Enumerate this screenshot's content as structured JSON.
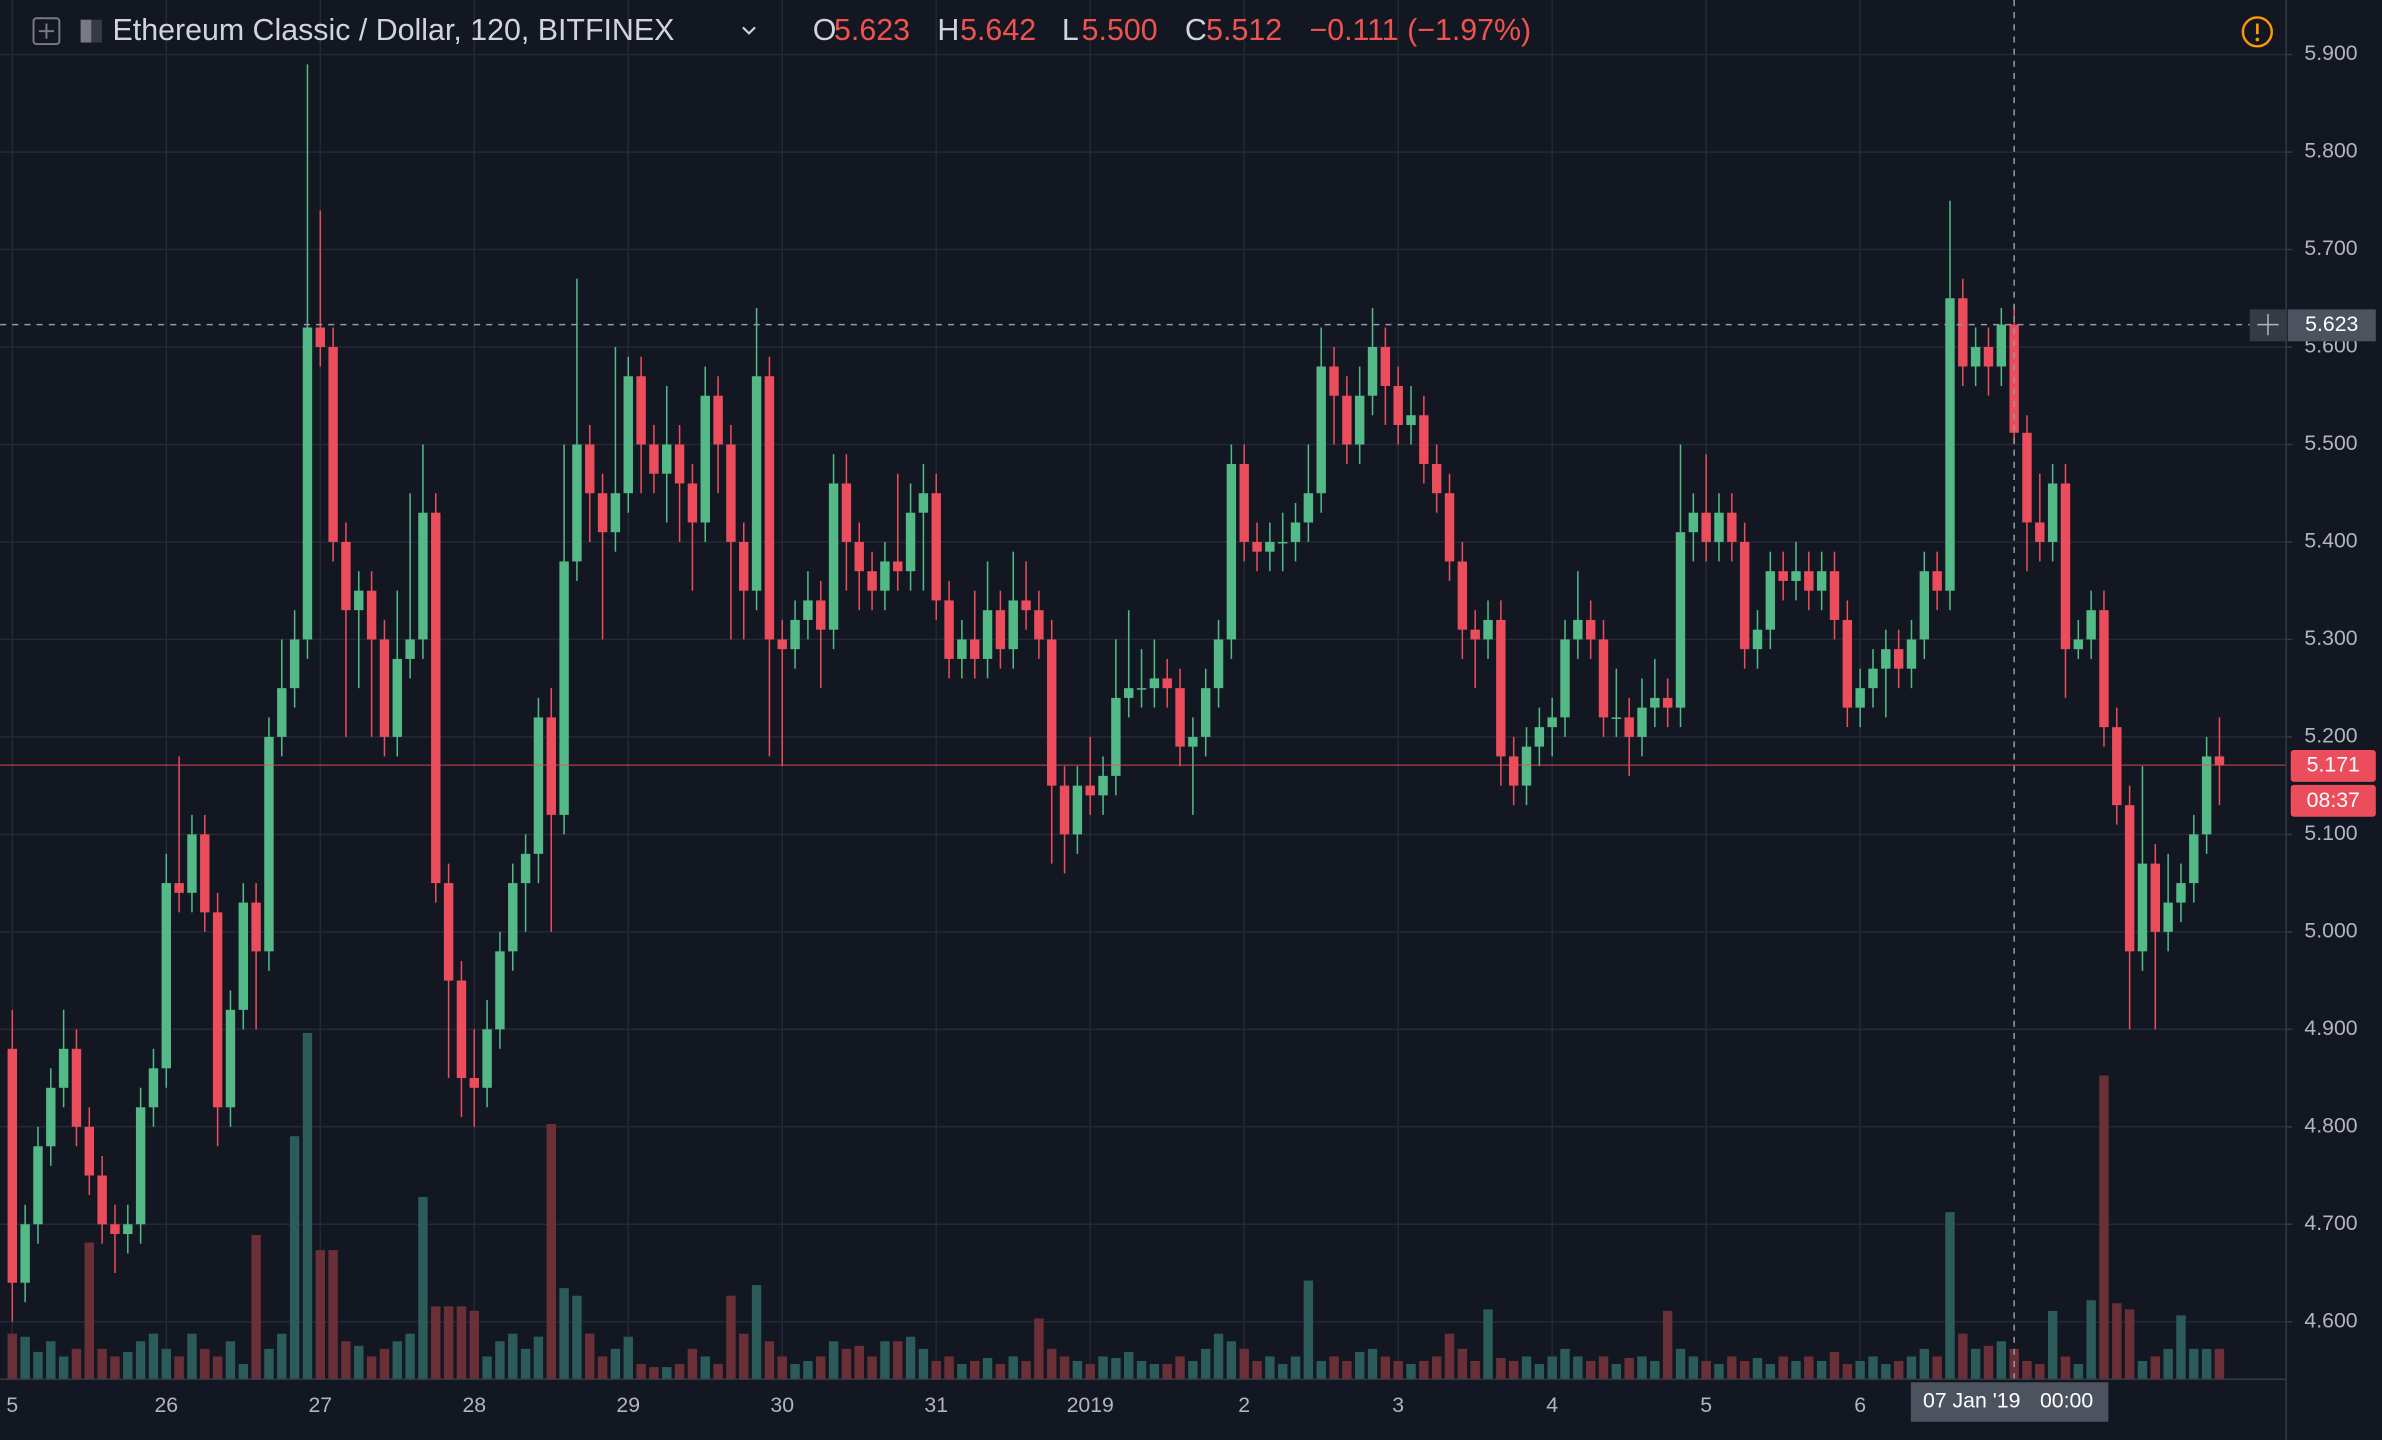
{
  "header": {
    "title": "Ethereum Classic / Dollar, 120, BITFINEX",
    "ohlc_letters": [
      "O",
      "H",
      "L",
      "C"
    ],
    "ohlc_values": [
      5.623,
      5.642,
      5.5,
      5.512
    ],
    "ohlc_value_labels": [
      "5.623",
      "5.642",
      "5.500",
      "5.512"
    ],
    "change": "−0.111 (−1.97%)"
  },
  "chart_data": {
    "type": "candlestick",
    "open": [
      4.88,
      4.64,
      4.7,
      4.78,
      4.84,
      4.88,
      4.8,
      4.75,
      4.7,
      4.69,
      4.7,
      4.82,
      4.86,
      5.05,
      5.04,
      5.1,
      5.02,
      4.82,
      4.92,
      5.03,
      4.98,
      5.2,
      5.25,
      5.3,
      5.62,
      5.6,
      5.4,
      5.33,
      5.35,
      5.3,
      5.2,
      5.28,
      5.3,
      5.43,
      5.05,
      4.95,
      4.85,
      4.84,
      4.9,
      4.98,
      5.05,
      5.08,
      5.22,
      5.12,
      5.38,
      5.5,
      5.45,
      5.41,
      5.45,
      5.57,
      5.5,
      5.47,
      5.5,
      5.46,
      5.42,
      5.55,
      5.5,
      5.4,
      5.35,
      5.57,
      5.3,
      5.29,
      5.32,
      5.34,
      5.31,
      5.46,
      5.4,
      5.37,
      5.35,
      5.38,
      5.37,
      5.43,
      5.45,
      5.34,
      5.28,
      5.3,
      5.28,
      5.33,
      5.29,
      5.34,
      5.33,
      5.3,
      5.15,
      5.1,
      5.15,
      5.14,
      5.16,
      5.24,
      5.25,
      5.25,
      5.26,
      5.25,
      5.19,
      5.2,
      5.25,
      5.3,
      5.48,
      5.4,
      5.39,
      5.4,
      5.4,
      5.42,
      5.45,
      5.58,
      5.55,
      5.5,
      5.55,
      5.6,
      5.56,
      5.52,
      5.53,
      5.48,
      5.45,
      5.38,
      5.31,
      5.3,
      5.32,
      5.18,
      5.15,
      5.19,
      5.21,
      5.22,
      5.3,
      5.32,
      5.3,
      5.22,
      5.22,
      5.2,
      5.23,
      5.24,
      5.23,
      5.41,
      5.43,
      5.4,
      5.43,
      5.4,
      5.29,
      5.31,
      5.37,
      5.36,
      5.37,
      5.35,
      5.37,
      5.32,
      5.23,
      5.25,
      5.27,
      5.29,
      5.27,
      5.3,
      5.37,
      5.35,
      5.65,
      5.58,
      5.6,
      5.58,
      5.623,
      5.512,
      5.42,
      5.4,
      5.46,
      5.29,
      5.3,
      5.33,
      5.21,
      5.13,
      4.98,
      5.07,
      5.0,
      5.03,
      5.05,
      5.1,
      5.18
    ],
    "high": [
      4.92,
      4.72,
      4.8,
      4.86,
      4.92,
      4.9,
      4.82,
      4.77,
      4.72,
      4.72,
      4.84,
      4.88,
      5.08,
      5.18,
      5.12,
      5.12,
      5.04,
      4.94,
      5.05,
      5.05,
      5.22,
      5.3,
      5.33,
      5.89,
      5.74,
      5.62,
      5.42,
      5.37,
      5.37,
      5.32,
      5.35,
      5.45,
      5.5,
      5.45,
      5.07,
      4.97,
      4.9,
      4.93,
      5.0,
      5.07,
      5.1,
      5.24,
      5.25,
      5.5,
      5.67,
      5.52,
      5.47,
      5.6,
      5.59,
      5.59,
      5.52,
      5.56,
      5.52,
      5.48,
      5.58,
      5.57,
      5.52,
      5.42,
      5.64,
      5.59,
      5.32,
      5.34,
      5.37,
      5.36,
      5.49,
      5.49,
      5.42,
      5.39,
      5.4,
      5.47,
      5.46,
      5.48,
      5.47,
      5.36,
      5.32,
      5.35,
      5.38,
      5.35,
      5.39,
      5.38,
      5.35,
      5.32,
      5.17,
      5.17,
      5.2,
      5.18,
      5.3,
      5.33,
      5.29,
      5.3,
      5.28,
      5.27,
      5.22,
      5.27,
      5.32,
      5.5,
      5.5,
      5.42,
      5.42,
      5.43,
      5.44,
      5.5,
      5.62,
      5.6,
      5.57,
      5.58,
      5.64,
      5.62,
      5.58,
      5.56,
      5.55,
      5.5,
      5.47,
      5.4,
      5.33,
      5.34,
      5.34,
      5.2,
      5.21,
      5.23,
      5.24,
      5.32,
      5.37,
      5.34,
      5.32,
      5.27,
      5.24,
      5.26,
      5.28,
      5.26,
      5.5,
      5.45,
      5.49,
      5.45,
      5.45,
      5.42,
      5.33,
      5.39,
      5.39,
      5.4,
      5.39,
      5.39,
      5.39,
      5.34,
      5.27,
      5.29,
      5.31,
      5.31,
      5.32,
      5.39,
      5.39,
      5.75,
      5.67,
      5.62,
      5.62,
      5.64,
      5.642,
      5.53,
      5.47,
      5.48,
      5.48,
      5.32,
      5.35,
      5.35,
      5.23,
      5.15,
      5.17,
      5.09,
      5.08,
      5.07,
      5.12,
      5.2,
      5.22
    ],
    "low": [
      4.6,
      4.62,
      4.68,
      4.76,
      4.82,
      4.78,
      4.73,
      4.68,
      4.65,
      4.67,
      4.68,
      4.8,
      4.84,
      5.02,
      5.02,
      5.0,
      4.78,
      4.8,
      4.9,
      4.9,
      4.96,
      5.18,
      5.23,
      5.28,
      5.58,
      5.38,
      5.2,
      5.25,
      5.2,
      5.18,
      5.18,
      5.26,
      5.28,
      5.03,
      4.85,
      4.81,
      4.8,
      4.82,
      4.88,
      4.96,
      5.0,
      5.05,
      5.0,
      5.1,
      5.36,
      5.4,
      5.3,
      5.39,
      5.43,
      5.45,
      5.45,
      5.42,
      5.4,
      5.35,
      5.4,
      5.45,
      5.3,
      5.3,
      5.33,
      5.18,
      5.17,
      5.27,
      5.3,
      5.25,
      5.29,
      5.35,
      5.33,
      5.33,
      5.33,
      5.35,
      5.35,
      5.35,
      5.32,
      5.26,
      5.26,
      5.26,
      5.26,
      5.27,
      5.27,
      5.31,
      5.28,
      5.07,
      5.06,
      5.08,
      5.12,
      5.12,
      5.14,
      5.22,
      5.23,
      5.23,
      5.23,
      5.17,
      5.12,
      5.18,
      5.23,
      5.28,
      5.38,
      5.37,
      5.37,
      5.37,
      5.38,
      5.4,
      5.43,
      5.5,
      5.48,
      5.48,
      5.53,
      5.52,
      5.5,
      5.5,
      5.46,
      5.43,
      5.36,
      5.28,
      5.25,
      5.28,
      5.15,
      5.13,
      5.13,
      5.17,
      5.18,
      5.2,
      5.28,
      5.28,
      5.2,
      5.2,
      5.16,
      5.18,
      5.21,
      5.21,
      5.21,
      5.38,
      5.38,
      5.38,
      5.38,
      5.27,
      5.27,
      5.29,
      5.34,
      5.34,
      5.33,
      5.33,
      5.3,
      5.21,
      5.21,
      5.23,
      5.22,
      5.25,
      5.25,
      5.28,
      5.33,
      5.33,
      5.56,
      5.56,
      5.55,
      5.56,
      5.5,
      5.37,
      5.38,
      5.38,
      5.24,
      5.28,
      5.28,
      5.19,
      5.11,
      4.9,
      4.96,
      4.9,
      4.98,
      5.01,
      5.03,
      5.08,
      5.13
    ],
    "close": [
      4.64,
      4.7,
      4.78,
      4.84,
      4.88,
      4.8,
      4.75,
      4.7,
      4.69,
      4.7,
      4.82,
      4.86,
      5.05,
      5.04,
      5.1,
      5.02,
      4.82,
      4.92,
      5.03,
      4.98,
      5.2,
      5.25,
      5.3,
      5.62,
      5.6,
      5.4,
      5.33,
      5.35,
      5.3,
      5.2,
      5.28,
      5.3,
      5.43,
      5.05,
      4.95,
      4.85,
      4.84,
      4.9,
      4.98,
      5.05,
      5.08,
      5.22,
      5.12,
      5.38,
      5.5,
      5.45,
      5.41,
      5.45,
      5.57,
      5.5,
      5.47,
      5.5,
      5.46,
      5.42,
      5.55,
      5.5,
      5.4,
      5.35,
      5.57,
      5.3,
      5.29,
      5.32,
      5.34,
      5.31,
      5.46,
      5.4,
      5.37,
      5.35,
      5.38,
      5.37,
      5.43,
      5.45,
      5.34,
      5.28,
      5.3,
      5.28,
      5.33,
      5.29,
      5.34,
      5.33,
      5.3,
      5.15,
      5.1,
      5.15,
      5.14,
      5.16,
      5.24,
      5.25,
      5.25,
      5.26,
      5.25,
      5.19,
      5.2,
      5.25,
      5.3,
      5.48,
      5.4,
      5.39,
      5.4,
      5.4,
      5.42,
      5.45,
      5.58,
      5.55,
      5.5,
      5.55,
      5.6,
      5.56,
      5.52,
      5.53,
      5.48,
      5.45,
      5.38,
      5.31,
      5.3,
      5.32,
      5.18,
      5.15,
      5.19,
      5.21,
      5.22,
      5.3,
      5.32,
      5.3,
      5.22,
      5.22,
      5.2,
      5.23,
      5.24,
      5.23,
      5.41,
      5.43,
      5.4,
      5.43,
      5.4,
      5.29,
      5.31,
      5.37,
      5.36,
      5.37,
      5.35,
      5.37,
      5.32,
      5.23,
      5.25,
      5.27,
      5.29,
      5.27,
      5.3,
      5.37,
      5.35,
      5.65,
      5.58,
      5.6,
      5.58,
      5.623,
      5.512,
      5.42,
      5.4,
      5.46,
      5.29,
      5.3,
      5.33,
      5.21,
      5.13,
      4.98,
      5.07,
      5.0,
      5.03,
      5.05,
      5.1,
      5.18,
      5.171
    ],
    "volume": [
      30,
      28,
      18,
      25,
      15,
      20,
      90,
      20,
      15,
      18,
      25,
      30,
      20,
      15,
      30,
      20,
      15,
      25,
      10,
      95,
      20,
      30,
      160,
      228,
      85,
      85,
      25,
      22,
      15,
      20,
      25,
      30,
      120,
      48,
      48,
      48,
      45,
      15,
      25,
      30,
      20,
      28,
      168,
      60,
      55,
      30,
      15,
      20,
      28,
      10,
      8,
      8,
      10,
      20,
      15,
      10,
      55,
      30,
      62,
      25,
      15,
      10,
      12,
      15,
      25,
      20,
      22,
      15,
      25,
      25,
      28,
      20,
      12,
      15,
      10,
      12,
      14,
      10,
      15,
      12,
      40,
      20,
      15,
      12,
      10,
      15,
      14,
      18,
      12,
      10,
      10,
      15,
      12,
      20,
      30,
      25,
      20,
      12,
      15,
      10,
      15,
      65,
      12,
      15,
      12,
      18,
      20,
      15,
      12,
      10,
      12,
      15,
      30,
      20,
      12,
      46,
      14,
      12,
      15,
      10,
      15,
      20,
      15,
      12,
      15,
      10,
      14,
      15,
      12,
      45,
      20,
      15,
      12,
      10,
      15,
      12,
      14,
      10,
      15,
      12,
      15,
      12,
      18,
      10,
      12,
      15,
      10,
      12,
      15,
      20,
      15,
      110,
      30,
      20,
      22,
      25,
      20,
      12,
      10,
      45,
      15,
      10,
      52,
      200,
      50,
      46,
      12,
      15,
      20,
      42,
      20,
      20,
      20
    ],
    "up_color": "#53b987",
    "down_color": "#eb4d5c",
    "volume_up_color": "#2b5c5a",
    "volume_down_color": "#6b3037",
    "xlim": [
      -0.95,
      177.2
    ],
    "xticks": [
      {
        "value": 0,
        "label": "5"
      },
      {
        "value": 12,
        "label": "26"
      },
      {
        "value": 24,
        "label": "27"
      },
      {
        "value": 36,
        "label": "28"
      },
      {
        "value": 48,
        "label": "29"
      },
      {
        "value": 60,
        "label": "30"
      },
      {
        "value": 72,
        "label": "31"
      },
      {
        "value": 84,
        "label": "2019"
      },
      {
        "value": 96,
        "label": "2"
      },
      {
        "value": 108,
        "label": "3"
      },
      {
        "value": 120,
        "label": "4"
      },
      {
        "value": 132,
        "label": "5"
      },
      {
        "value": 144,
        "label": "6"
      }
    ],
    "ylim": [
      4.541,
      5.956
    ],
    "yticks": [
      {
        "value": 4.6,
        "label": "4.600"
      },
      {
        "value": 4.7,
        "label": "4.700"
      },
      {
        "value": 4.8,
        "label": "4.800"
      },
      {
        "value": 4.9,
        "label": "4.900"
      },
      {
        "value": 5.0,
        "label": "5.000"
      },
      {
        "value": 5.1,
        "label": "5.100"
      },
      {
        "value": 5.2,
        "label": "5.200"
      },
      {
        "value": 5.3,
        "label": "5.300"
      },
      {
        "value": 5.4,
        "label": "5.400"
      },
      {
        "value": 5.5,
        "label": "5.500"
      },
      {
        "value": 5.6,
        "label": "5.600"
      },
      {
        "value": 5.7,
        "label": "5.700"
      },
      {
        "value": 5.8,
        "label": "5.800"
      },
      {
        "value": 5.9,
        "label": "5.900"
      }
    ],
    "vlim": [
      0,
      300
    ],
    "grid": true,
    "crosshair": {
      "x": 156,
      "price": 5.623,
      "price_label": "5.623",
      "date_label": "07 Jan '19",
      "time_label": "00:00"
    },
    "last_price": {
      "value": 5.171,
      "label": "5.171",
      "countdown": "08:37"
    }
  }
}
